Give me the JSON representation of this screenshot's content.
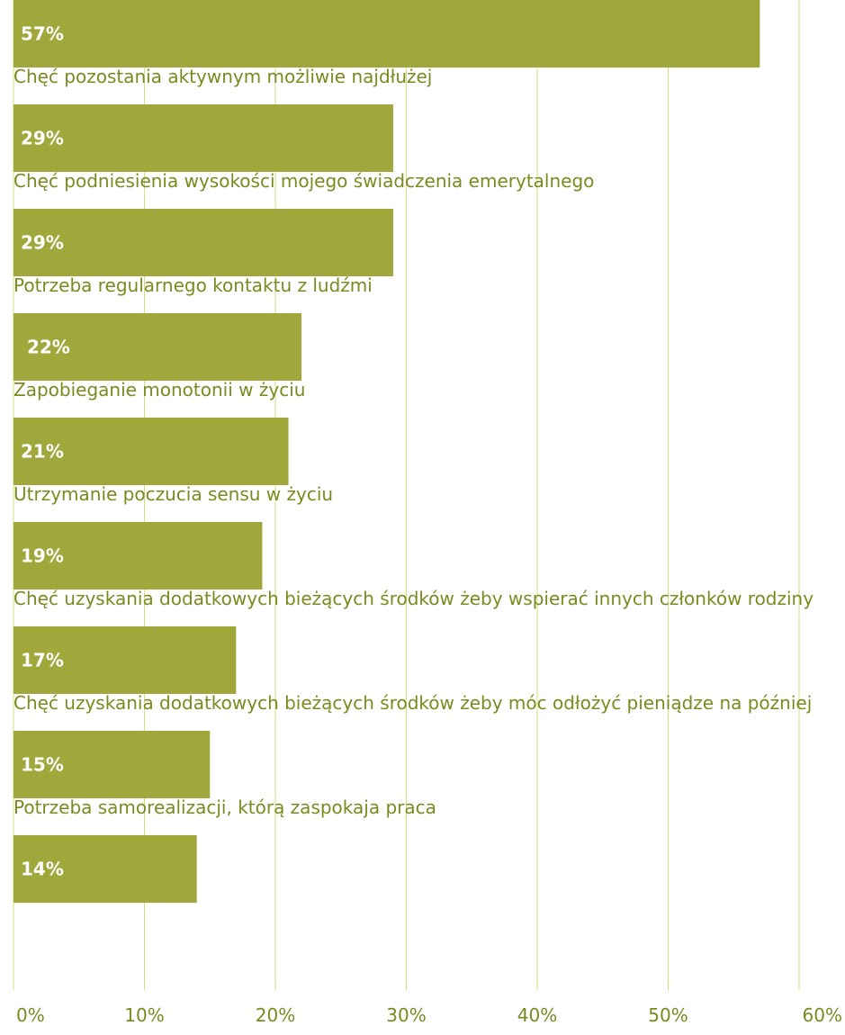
{
  "chart_data": {
    "type": "bar",
    "orientation": "horizontal",
    "categories": [
      "",
      "Chęć pozostania aktywnym możliwie najdłużej",
      "Chęć podniesienia wysokości mojego świadczenia emerytalnego",
      "Potrzeba regularnego kontaktu z ludźmi",
      "Zapobieganie monotonii w życiu",
      "Utrzymanie poczucia sensu w życiu",
      "Chęć uzyskania dodatkowych bieżących środków żeby wspierać innych członków rodziny",
      "Chęć uzyskania dodatkowych bieżących środków żeby móc odłożyć pieniądze na później",
      "Potrzeba samorealizacji, którą zaspokaja praca"
    ],
    "values": [
      57,
      29,
      29,
      22,
      21,
      19,
      17,
      15,
      14
    ],
    "value_labels": [
      "57%",
      "29%",
      "29%",
      " 22%",
      "21%",
      "19%",
      "17%",
      "15%",
      "14%"
    ],
    "xlim": [
      0,
      60
    ],
    "xticks": [
      0,
      10,
      20,
      30,
      40,
      50,
      60
    ],
    "xtick_labels": [
      "0%",
      "10%",
      "20%",
      "30%",
      "40%",
      "50%",
      "60%"
    ],
    "grid": true,
    "colors": {
      "bar": "#a0a83c",
      "text": "#7b8a1f",
      "grid": "#d6dc7a",
      "value_text": "#ffffff"
    }
  }
}
